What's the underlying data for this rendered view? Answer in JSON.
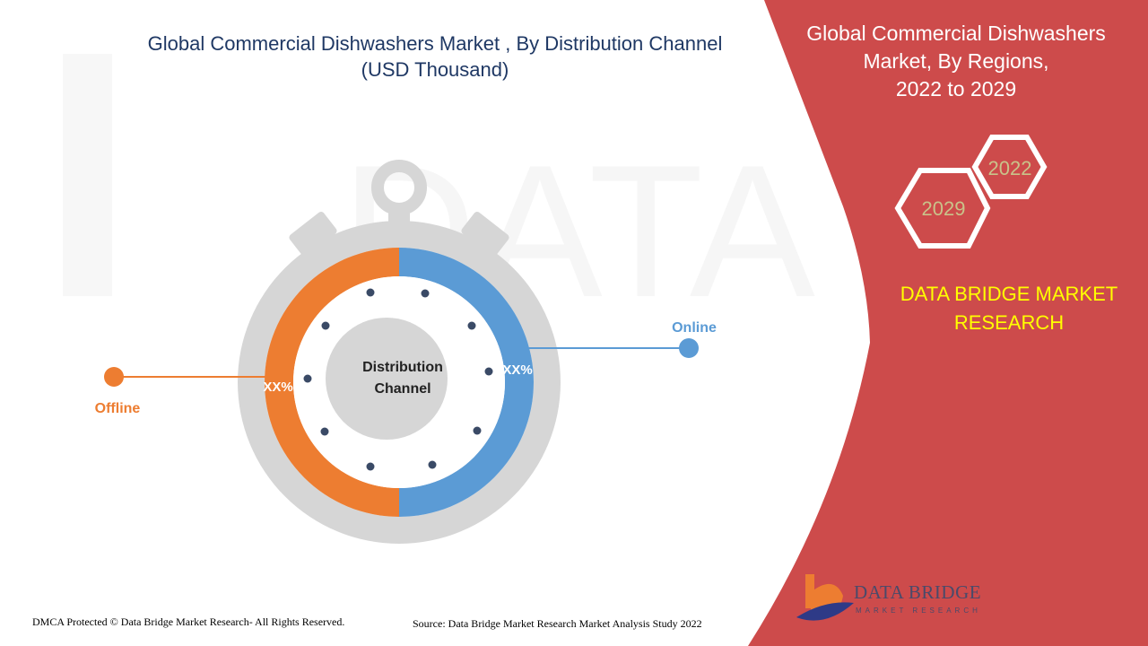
{
  "chart_data": {
    "type": "pie",
    "title": "Global Commercial Dishwashers Market , By Distribution Channel (USD Thousand)",
    "title_line1": "Global Commercial Dishwashers Market , By Distribution Channel",
    "title_line2": "(USD Thousand)",
    "center_label_line1": "Distribution",
    "center_label_line2": "Channel",
    "series": [
      {
        "name": "Offline",
        "share": 50,
        "value_label": "XX%",
        "color": "#ed7d31"
      },
      {
        "name": "Online",
        "share": 50,
        "value_label": "XX%",
        "color": "#5b9bd5"
      }
    ]
  },
  "side_panel": {
    "title_lines": [
      "Global Commercial Dishwashers",
      "Market, By Regions,",
      "2022 to 2029"
    ],
    "hex_labels": [
      "2022",
      "2029"
    ],
    "brand_lines": [
      "DATA BRIDGE MARKET",
      "RESEARCH"
    ],
    "background_color": "#cd4b4b",
    "brand_color": "#ffff00"
  },
  "footer": {
    "left": "DMCA Protected © Data Bridge Market Research- All Rights Reserved.",
    "right": "Source: Data Bridge Market Research Market Analysis Study 2022"
  },
  "logo": {
    "name": "DATA BRIDGE",
    "sub": "MARKET RESEARCH"
  }
}
